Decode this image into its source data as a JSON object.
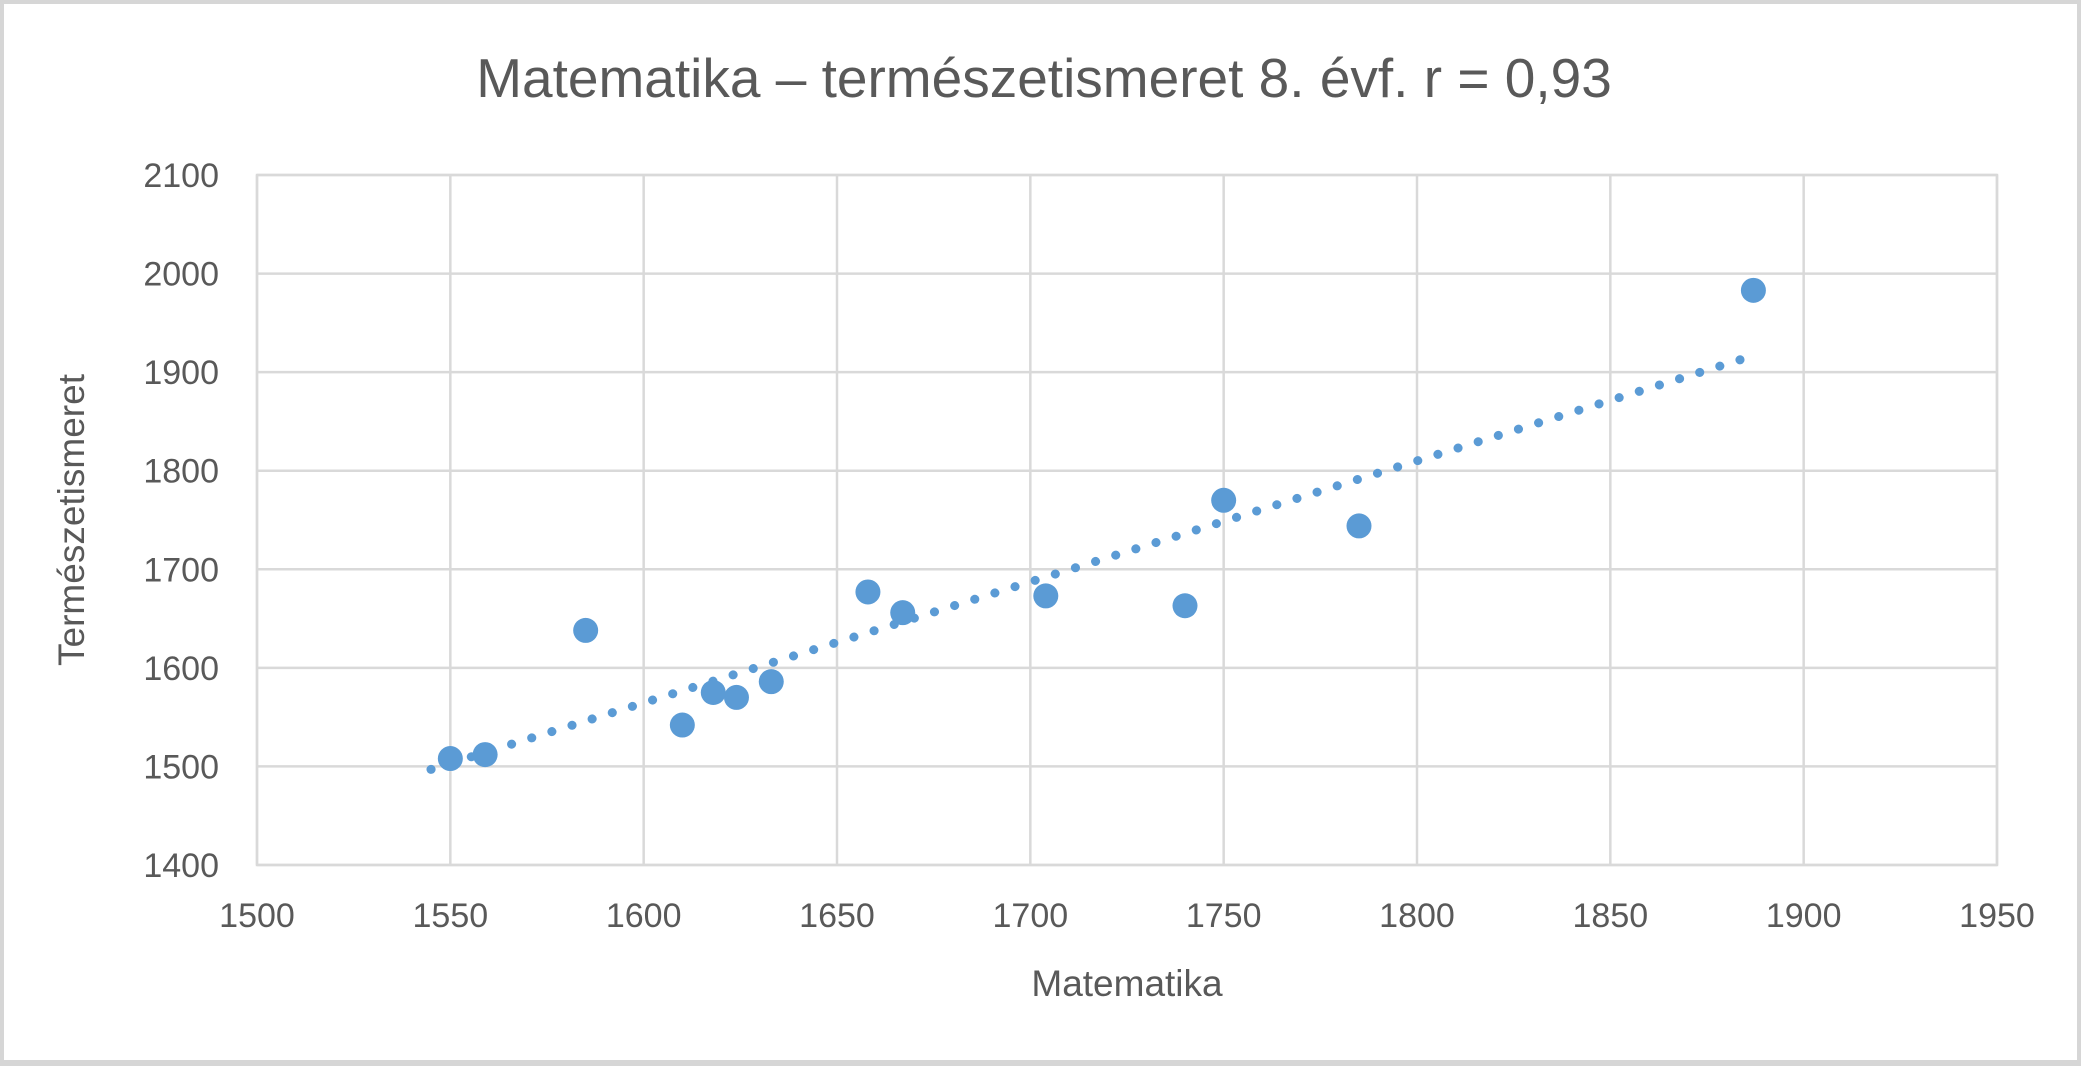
{
  "chart_data": {
    "type": "scatter",
    "title": "Matematika – természetismeret 8. évf. r = 0,93",
    "xlabel": "Matematika",
    "ylabel": "Természetismeret",
    "xlim": [
      1500,
      1950
    ],
    "ylim": [
      1400,
      2100
    ],
    "x_ticks": [
      1500,
      1550,
      1600,
      1650,
      1700,
      1750,
      1800,
      1850,
      1900,
      1950
    ],
    "y_ticks": [
      1400,
      1500,
      1600,
      1700,
      1800,
      1900,
      2000,
      2100
    ],
    "grid": true,
    "legend": false,
    "series_name": "Matematika – Természetismeret",
    "points": [
      [
        1550,
        1508
      ],
      [
        1559,
        1512
      ],
      [
        1585,
        1638
      ],
      [
        1610,
        1542
      ],
      [
        1618,
        1575
      ],
      [
        1624,
        1570
      ],
      [
        1633,
        1586
      ],
      [
        1658,
        1677
      ],
      [
        1667,
        1656
      ],
      [
        1704,
        1673
      ],
      [
        1740,
        1663
      ],
      [
        1750,
        1770
      ],
      [
        1785,
        1744
      ],
      [
        1887,
        1983
      ]
    ],
    "trendline": {
      "type": "linear",
      "style": "dotted",
      "start": [
        1545,
        1497
      ],
      "end": [
        1888,
        1918
      ]
    },
    "correlation": "r = 0,93"
  },
  "colors": {
    "marker": "#5B9BD5",
    "trendline": "#5B9BD5",
    "gridline": "#D9D9D9",
    "plot_border": "#D9D9D9",
    "text": "#595959",
    "frame": "#D6D6D6",
    "background": "#FFFFFF"
  }
}
